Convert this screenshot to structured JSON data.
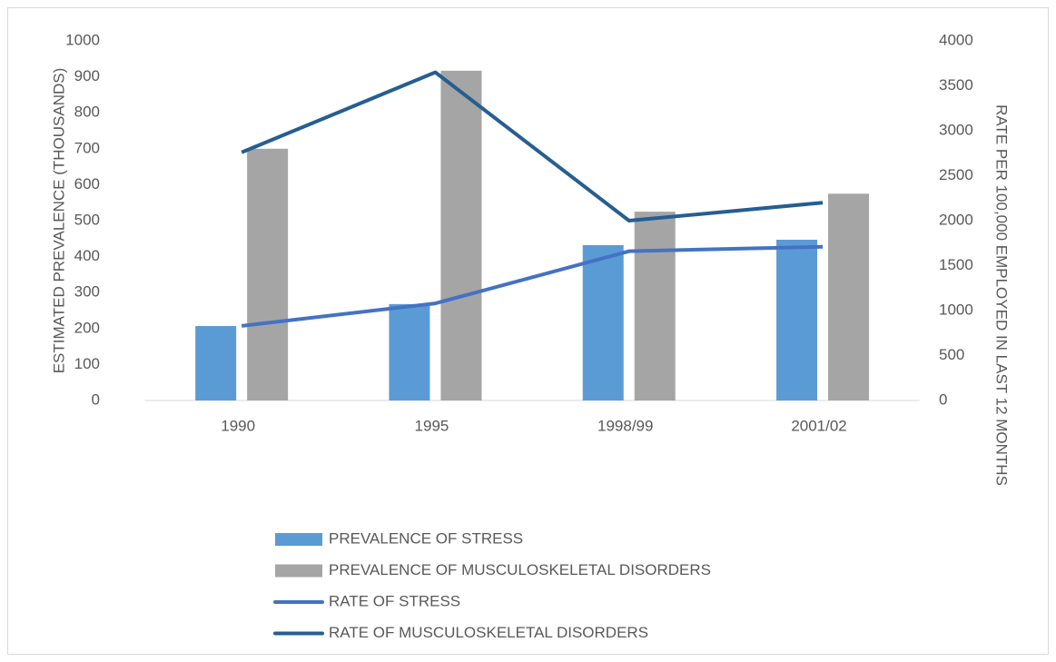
{
  "chart_data": {
    "type": "bar-line",
    "categories": [
      "1990",
      "1995",
      "1998/99",
      "2001/02"
    ],
    "series": [
      {
        "name": "PREVALENCE OF STRESS",
        "type": "bar",
        "color": "#5b9bd5",
        "values": [
          207,
          268,
          432,
          447
        ]
      },
      {
        "name": "PREVALENCE OF MUSCULOSKELETAL DISORDERS",
        "type": "bar",
        "color": "#a5a5a5",
        "values": [
          700,
          917,
          525,
          575
        ]
      },
      {
        "name": "RATE OF STRESS",
        "type": "line",
        "axis": "y2",
        "color": "#4472c4",
        "values": [
          830,
          1080,
          1660,
          1710
        ]
      },
      {
        "name": "RATE OF MUSCULOSKELETAL DISORDERS",
        "type": "line",
        "axis": "y2",
        "color": "#255e91",
        "values": [
          2760,
          3650,
          2000,
          2200
        ]
      }
    ],
    "ylabel": "ESTIMATED PREVALENCE (THOUSANDS)",
    "y2label": "RATE PER 100,000 EMPLOYED IN LAST 12 MONTHS",
    "ylim": [
      0,
      1000
    ],
    "yticks": [
      0,
      100,
      200,
      300,
      400,
      500,
      600,
      700,
      800,
      900,
      1000
    ],
    "y2lim": [
      0,
      4000
    ],
    "y2ticks": [
      0,
      500,
      1000,
      1500,
      2000,
      2500,
      3000,
      3500,
      4000
    ],
    "grid": false,
    "legend": "bottom"
  }
}
